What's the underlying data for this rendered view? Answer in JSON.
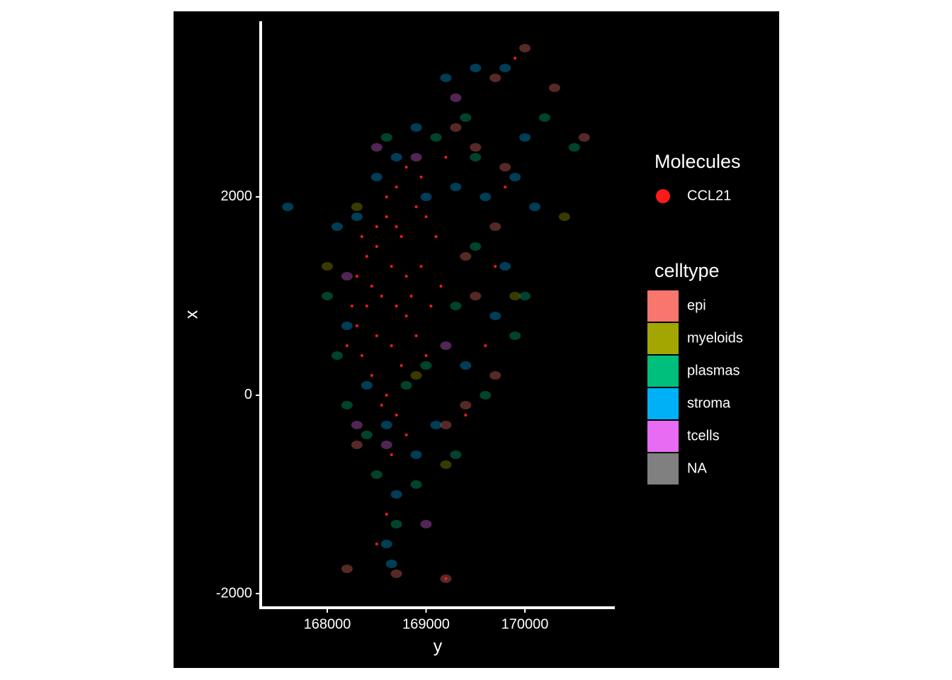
{
  "chart_data": {
    "type": "scatter",
    "xlabel": "y",
    "ylabel": "x",
    "xlim": [
      167326,
      170910
    ],
    "ylim": [
      -2143,
      3771
    ],
    "xticks": [
      168000,
      169000,
      170000
    ],
    "yticks": [
      -2000,
      0,
      2000
    ],
    "molecules": {
      "title": "Molecules",
      "series": [
        {
          "name": "CCL21",
          "color": "#ff1a1a",
          "x": [
            168300,
            168400,
            168500,
            168600,
            168700,
            168800,
            168900,
            168500,
            168350,
            168450,
            168600,
            168700,
            168800,
            168550,
            168650,
            168750,
            168850,
            168950,
            169050,
            169150,
            168400,
            168300,
            168200,
            168250,
            168600,
            168700,
            168800,
            168900,
            169000,
            169100,
            169200,
            168950,
            168500,
            168450,
            168650,
            168750,
            168550,
            168650,
            168600,
            168500,
            169400,
            169600,
            169700,
            169800,
            169900,
            169200,
            168350,
            168800,
            168700,
            169000
          ],
          "y": [
            1200,
            900,
            1500,
            1800,
            2100,
            2300,
            1900,
            600,
            400,
            200,
            0,
            -200,
            -400,
            1000,
            1300,
            1600,
            1000,
            1300,
            900,
            1100,
            1400,
            700,
            500,
            900,
            2000,
            1700,
            800,
            600,
            400,
            1600,
            2400,
            2200,
            1700,
            1100,
            500,
            300,
            -100,
            -600,
            -1200,
            -1500,
            -200,
            500,
            1300,
            2100,
            3400,
            -1850,
            1600,
            1200,
            900,
            1800
          ]
        }
      ]
    },
    "cells": {
      "title": "celltype",
      "series": [
        {
          "name": "epi",
          "color": "#F8766D",
          "x": [
            169500,
            169800,
            170300,
            170000,
            169700,
            169300,
            170600,
            169700,
            169500,
            169400,
            169200,
            169700,
            168300,
            168200,
            168700,
            169200,
            169400
          ],
          "y": [
            2500,
            2300,
            3100,
            3500,
            3200,
            2700,
            2600,
            1700,
            1000,
            -100,
            -300,
            200,
            -500,
            -1750,
            -1800,
            -1850,
            1400
          ]
        },
        {
          "name": "myeloids",
          "color": "#A3A500",
          "x": [
            168000,
            168300,
            170400,
            169900,
            169200,
            168900
          ],
          "y": [
            1300,
            1900,
            1800,
            1000,
            -700,
            200
          ]
        },
        {
          "name": "plasmas",
          "color": "#00BF7D",
          "x": [
            168000,
            168100,
            168200,
            168400,
            168500,
            168700,
            168900,
            169300,
            169600,
            169900,
            170000,
            169500,
            169300,
            169000,
            168800,
            169100,
            169400,
            170200,
            170500,
            169500,
            168600
          ],
          "y": [
            1000,
            400,
            -100,
            -400,
            -800,
            -1300,
            -900,
            -600,
            0,
            600,
            1000,
            1500,
            900,
            300,
            100,
            2600,
            2800,
            2800,
            2500,
            2400,
            2600
          ]
        },
        {
          "name": "stroma",
          "color": "#00B0F6",
          "x": [
            168100,
            168300,
            168500,
            168700,
            169000,
            169300,
            169600,
            169900,
            170100,
            168200,
            168400,
            168600,
            168900,
            169100,
            169400,
            169700,
            169800,
            168700,
            168600,
            168650,
            169200,
            169500,
            169800,
            170000,
            167600,
            168900
          ],
          "y": [
            1700,
            1800,
            2200,
            2400,
            2000,
            2100,
            2000,
            2200,
            1900,
            700,
            100,
            -300,
            -600,
            -300,
            300,
            800,
            1300,
            -1000,
            -1500,
            -1700,
            3200,
            3300,
            3300,
            2600,
            1900,
            2700
          ]
        },
        {
          "name": "tcells",
          "color": "#E76BF3",
          "x": [
            168300,
            168600,
            168900,
            168500,
            169000,
            169200,
            168200,
            169300
          ],
          "y": [
            -300,
            -500,
            2400,
            2500,
            -1300,
            500,
            1200,
            3000
          ]
        },
        {
          "name": "NA",
          "color": "#808080",
          "x": [],
          "y": []
        }
      ]
    }
  }
}
